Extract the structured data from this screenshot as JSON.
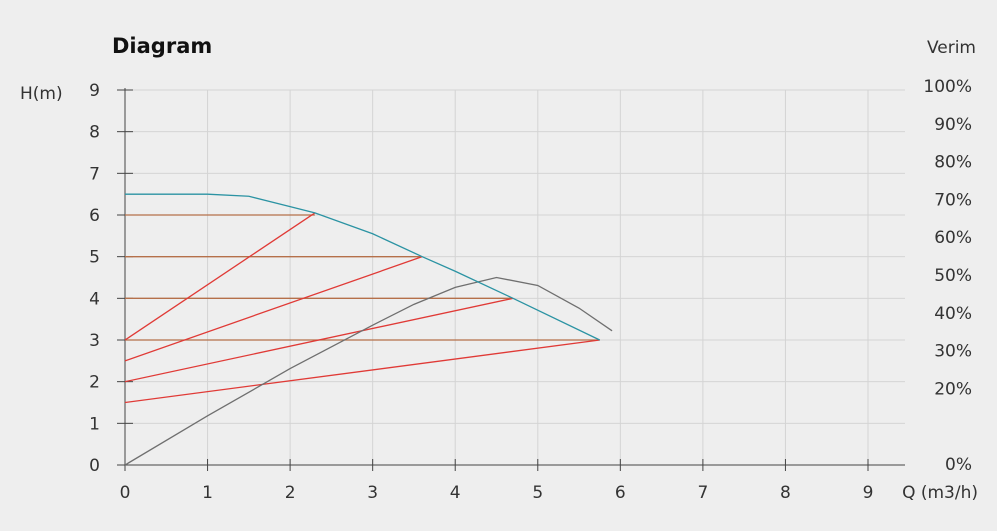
{
  "chart_data": {
    "type": "line",
    "title": "Diagram",
    "y_label": "H(m)",
    "x_label": "Q (m3/h)",
    "y2_label": "Verim",
    "xlim": [
      0,
      9
    ],
    "xticks": [
      0,
      1,
      2,
      3,
      4,
      5,
      6,
      7,
      8,
      9
    ],
    "ylim": [
      0,
      9
    ],
    "yticks": [
      0,
      1,
      2,
      3,
      4,
      5,
      6,
      7,
      8,
      9
    ],
    "y2lim": [
      0,
      100
    ],
    "y2ticks": [
      {
        "value": 0,
        "label": "0%"
      },
      {
        "value": 20,
        "label": "20%"
      },
      {
        "value": 30,
        "label": "30%"
      },
      {
        "value": 40,
        "label": "40%"
      },
      {
        "value": 50,
        "label": "50%"
      },
      {
        "value": 60,
        "label": "60%"
      },
      {
        "value": 70,
        "label": "70%"
      },
      {
        "value": 80,
        "label": "80%"
      },
      {
        "value": 90,
        "label": "90%"
      },
      {
        "value": 100,
        "label": "100%"
      }
    ],
    "grid": true,
    "series": [
      {
        "color": "#b5704a",
        "x": [
          0,
          2.3
        ],
        "values": [
          6,
          6
        ]
      },
      {
        "color": "#b5704a",
        "x": [
          0,
          3.6
        ],
        "values": [
          5,
          5
        ]
      },
      {
        "color": "#b5704a",
        "x": [
          0,
          4.7
        ],
        "values": [
          4,
          4
        ]
      },
      {
        "color": "#b5704a",
        "x": [
          0,
          5.75
        ],
        "values": [
          3,
          3
        ]
      },
      {
        "color": "#e03a36",
        "x": [
          0,
          2.3
        ],
        "values": [
          3,
          6.05
        ]
      },
      {
        "color": "#e03a36",
        "x": [
          0,
          3.6
        ],
        "values": [
          2.5,
          5
        ]
      },
      {
        "color": "#e03a36",
        "x": [
          0,
          4.7
        ],
        "values": [
          2,
          4
        ]
      },
      {
        "color": "#e03a36",
        "x": [
          0,
          5.75
        ],
        "values": [
          1.5,
          3
        ]
      },
      {
        "color": "#6f6f6f",
        "axis": "y2",
        "x": [
          0,
          1,
          2,
          3,
          3.5,
          4,
          4.5,
          5,
          5.5,
          5.9
        ],
        "values": [
          0,
          13,
          25.5,
          37,
          42.5,
          47,
          49.6,
          47.5,
          41.5,
          35.5
        ]
      },
      {
        "color": "#2b93a3",
        "x": [
          0,
          1,
          1.5,
          2,
          2.3,
          3,
          3.6,
          4,
          4.7,
          5.75
        ],
        "values": [
          6.5,
          6.5,
          6.45,
          6.2,
          6.05,
          5.55,
          5,
          4.65,
          4,
          3
        ]
      }
    ]
  }
}
